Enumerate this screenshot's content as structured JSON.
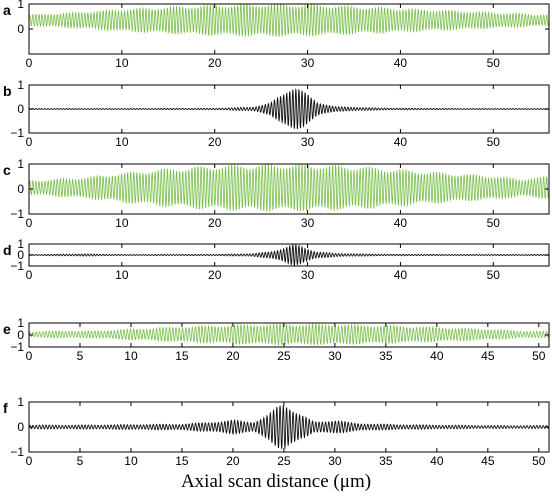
{
  "figure": {
    "xlabel": "Axial scan distance (μm)",
    "colors": {
      "green": "#79bf4a",
      "black": "#111111",
      "axis": "#000000"
    }
  },
  "chart_data": [
    {
      "type": "line",
      "panel": "a",
      "color": "green",
      "signal": "carrier",
      "xlim": [
        0,
        56
      ],
      "ylim": [
        -1,
        1
      ],
      "xticks": [
        0,
        10,
        20,
        30,
        40,
        50
      ],
      "yticks": [
        1,
        0
      ],
      "x_env": [
        0,
        5,
        10,
        15,
        20,
        25,
        28,
        32,
        38,
        44,
        50,
        56
      ],
      "envelope": [
        0.22,
        0.32,
        0.45,
        0.55,
        0.62,
        0.66,
        0.66,
        0.62,
        0.52,
        0.42,
        0.32,
        0.22
      ],
      "offset": 0.35,
      "cycles": 170
    },
    {
      "type": "line",
      "panel": "b",
      "color": "black",
      "signal": "fringe",
      "xlim": [
        0,
        56
      ],
      "ylim": [
        -1,
        1
      ],
      "xticks": [
        0,
        10,
        20,
        30,
        40,
        50
      ],
      "yticks": [
        1,
        0,
        -1
      ],
      "x_env": [
        0,
        10,
        20,
        24,
        26,
        27,
        28,
        28.5,
        29,
        30,
        31,
        33,
        38,
        46,
        56
      ],
      "envelope": [
        0.02,
        0.02,
        0.03,
        0.08,
        0.25,
        0.55,
        0.9,
        1.0,
        0.92,
        0.6,
        0.3,
        0.1,
        0.04,
        0.02,
        0.02
      ],
      "offset": 0,
      "cycles": 170
    },
    {
      "type": "line",
      "panel": "c",
      "color": "green",
      "signal": "carrier",
      "xlim": [
        0,
        56
      ],
      "ylim": [
        -1,
        1
      ],
      "xticks": [
        0,
        10,
        20,
        30,
        40,
        50
      ],
      "yticks": [
        1,
        0,
        -1
      ],
      "x_env": [
        0,
        3,
        6,
        10,
        15,
        20,
        25,
        30,
        35,
        40,
        45,
        50,
        53,
        56
      ],
      "envelope": [
        0.28,
        0.35,
        0.42,
        0.6,
        0.78,
        0.9,
        0.95,
        0.95,
        0.88,
        0.75,
        0.6,
        0.48,
        0.35,
        0.45
      ],
      "offset": 0.05,
      "cycles": 170
    },
    {
      "type": "line",
      "panel": "d",
      "color": "black",
      "signal": "fringe",
      "xlim": [
        0,
        56
      ],
      "ylim": [
        -1,
        1
      ],
      "xticks": [
        0,
        10,
        20,
        30,
        40,
        50
      ],
      "yticks": [
        1,
        0,
        -1
      ],
      "x_env": [
        0,
        6,
        10,
        15,
        20,
        24,
        26,
        27,
        28,
        28.5,
        29,
        30,
        31,
        33,
        38,
        46,
        56
      ],
      "envelope": [
        0.04,
        0.1,
        0.04,
        0.05,
        0.06,
        0.12,
        0.3,
        0.55,
        0.85,
        0.95,
        0.88,
        0.6,
        0.3,
        0.15,
        0.07,
        0.05,
        0.05
      ],
      "offset": 0,
      "cycles": 170
    },
    {
      "type": "line",
      "panel": "e",
      "color": "green",
      "signal": "carrier",
      "xlim": [
        0,
        51
      ],
      "ylim": [
        -1,
        1
      ],
      "xticks": [
        0,
        5,
        10,
        15,
        20,
        25,
        30,
        35,
        40,
        45,
        50
      ],
      "yticks": [
        1,
        0,
        -1
      ],
      "x_env": [
        0,
        3,
        6,
        10,
        15,
        20,
        25,
        30,
        35,
        40,
        45,
        48,
        51
      ],
      "envelope": [
        0.22,
        0.3,
        0.28,
        0.45,
        0.65,
        0.8,
        0.88,
        0.85,
        0.75,
        0.6,
        0.45,
        0.3,
        0.25
      ],
      "offset": 0.05,
      "cycles": 160
    },
    {
      "type": "line",
      "panel": "f",
      "color": "black",
      "signal": "fringe",
      "xlim": [
        0,
        51
      ],
      "ylim": [
        -1,
        1
      ],
      "xticks": [
        0,
        5,
        10,
        15,
        20,
        25,
        30,
        35,
        40,
        45,
        50
      ],
      "yticks": [
        1,
        0,
        -1
      ],
      "x_env": [
        0,
        5,
        10,
        15,
        18,
        20,
        22,
        23.5,
        24.5,
        25,
        25.5,
        26.5,
        28,
        30,
        32,
        36,
        40,
        45,
        51
      ],
      "envelope": [
        0.08,
        0.08,
        0.1,
        0.12,
        0.2,
        0.28,
        0.2,
        0.5,
        0.9,
        1.0,
        0.9,
        0.55,
        0.2,
        0.28,
        0.15,
        0.1,
        0.08,
        0.06,
        0.06
      ],
      "offset": 0,
      "cycles": 160
    }
  ]
}
